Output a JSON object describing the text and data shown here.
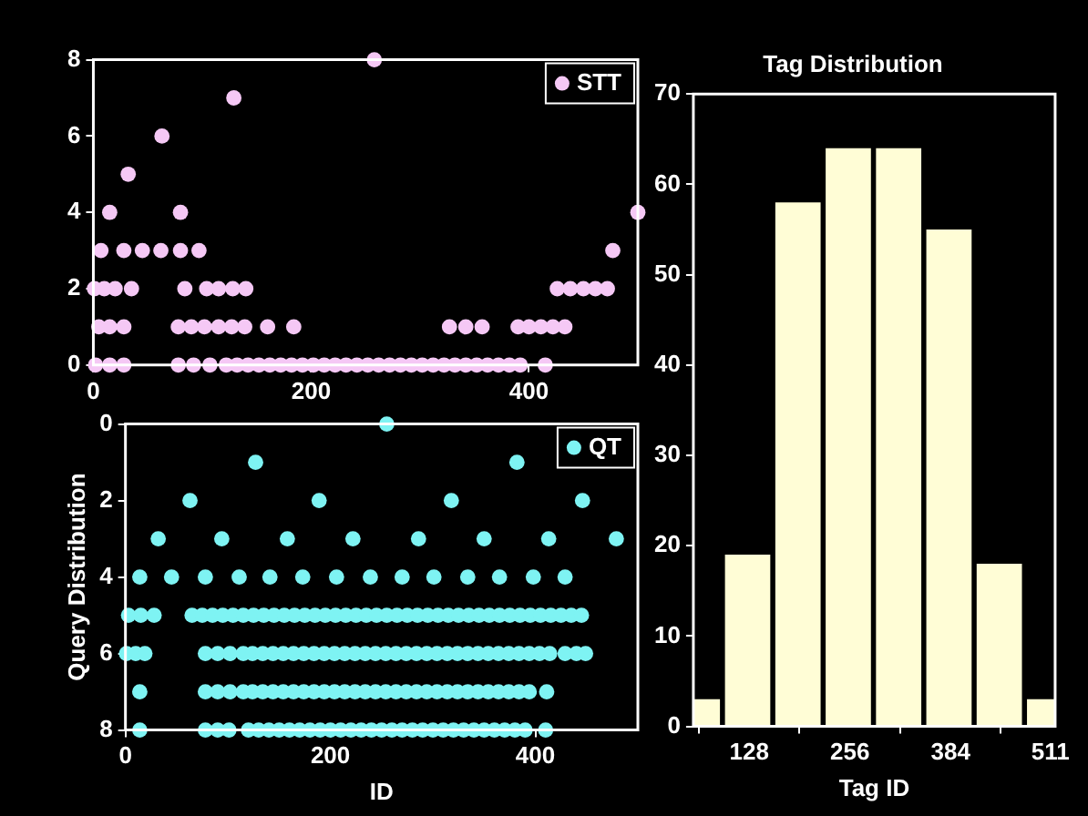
{
  "chart_data": [
    {
      "type": "scatter",
      "xlim": [
        0,
        500
      ],
      "xticks": [
        0,
        200,
        400
      ],
      "ylim": [
        0,
        8
      ],
      "yticks": [
        0,
        2,
        4,
        6,
        8
      ],
      "legend": "top right",
      "marker": "circle",
      "series": [
        {
          "name": "STT",
          "color": "#f5c8f5",
          "x": [
            258,
            129,
            63,
            32,
            15,
            80,
            500,
            7,
            28,
            45,
            62,
            80,
            97,
            477,
            1,
            10,
            20,
            35,
            84,
            104,
            115,
            128,
            140,
            426,
            438,
            450,
            461,
            472,
            5,
            15,
            28,
            78,
            90,
            102,
            115,
            127,
            139,
            160,
            184,
            327,
            342,
            357,
            390,
            400,
            411,
            422,
            433,
            2,
            15,
            28,
            78,
            92,
            107,
            122,
            132,
            142,
            152,
            162,
            172,
            182,
            192,
            202,
            212,
            222,
            232,
            242,
            252,
            262,
            272,
            282,
            292,
            302,
            312,
            322,
            332,
            342,
            352,
            362,
            372,
            382,
            392,
            415
          ],
          "values": [
            8,
            7,
            6,
            5,
            4,
            4,
            4,
            3,
            3,
            3,
            3,
            3,
            3,
            3,
            2,
            2,
            2,
            2,
            2,
            2,
            2,
            2,
            2,
            2,
            2,
            2,
            2,
            2,
            1,
            1,
            1,
            1,
            1,
            1,
            1,
            1,
            1,
            1,
            1,
            1,
            1,
            1,
            1,
            1,
            1,
            1,
            1,
            0,
            0,
            0,
            0,
            0,
            0,
            0,
            0,
            0,
            0,
            0,
            0,
            0,
            0,
            0,
            0,
            0,
            0,
            0,
            0,
            0,
            0,
            0,
            0,
            0,
            0,
            0,
            0,
            0,
            0,
            0,
            0,
            0,
            0,
            0
          ]
        }
      ]
    },
    {
      "type": "scatter",
      "xlabel": "ID",
      "ylabel": "Query Distribution",
      "xlim": [
        0,
        500
      ],
      "xticks": [
        0,
        200,
        400
      ],
      "ylim": [
        8,
        0
      ],
      "yticks": [
        0,
        2,
        4,
        6,
        8
      ],
      "legend": "top right",
      "marker": "circle",
      "series": [
        {
          "name": "QT",
          "color": "#7ef3f3",
          "x": [
            255,
            127,
            382,
            63,
            189,
            318,
            446,
            32,
            94,
            158,
            222,
            286,
            350,
            413,
            479,
            14,
            45,
            78,
            111,
            141,
            173,
            206,
            239,
            270,
            301,
            334,
            365,
            398,
            429,
            3,
            15,
            28,
            65,
            75,
            85,
            95,
            105,
            115,
            125,
            135,
            145,
            155,
            165,
            175,
            185,
            195,
            205,
            215,
            225,
            235,
            245,
            255,
            265,
            275,
            285,
            295,
            305,
            315,
            325,
            335,
            345,
            355,
            365,
            375,
            385,
            395,
            405,
            415,
            425,
            435,
            445,
            1,
            10,
            19,
            78,
            90,
            102,
            115,
            124,
            134,
            144,
            154,
            164,
            174,
            184,
            194,
            204,
            214,
            224,
            234,
            244,
            254,
            264,
            274,
            284,
            294,
            304,
            314,
            324,
            334,
            344,
            354,
            364,
            374,
            384,
            394,
            404,
            414,
            429,
            440,
            449,
            14,
            78,
            90,
            102,
            115,
            124,
            134,
            144,
            154,
            164,
            174,
            184,
            194,
            204,
            214,
            224,
            234,
            244,
            254,
            264,
            274,
            284,
            294,
            304,
            314,
            324,
            334,
            344,
            354,
            364,
            374,
            384,
            394,
            411,
            14,
            78,
            90,
            101,
            120,
            130,
            140,
            150,
            160,
            170,
            180,
            190,
            200,
            210,
            220,
            230,
            240,
            250,
            260,
            270,
            280,
            290,
            300,
            310,
            320,
            330,
            340,
            350,
            360,
            370,
            380,
            390,
            410
          ],
          "values": [
            0,
            1,
            1,
            2,
            2,
            2,
            2,
            3,
            3,
            3,
            3,
            3,
            3,
            3,
            3,
            4,
            4,
            4,
            4,
            4,
            4,
            4,
            4,
            4,
            4,
            4,
            4,
            4,
            4,
            5,
            5,
            5,
            5,
            5,
            5,
            5,
            5,
            5,
            5,
            5,
            5,
            5,
            5,
            5,
            5,
            5,
            5,
            5,
            5,
            5,
            5,
            5,
            5,
            5,
            5,
            5,
            5,
            5,
            5,
            5,
            5,
            5,
            5,
            5,
            5,
            5,
            5,
            5,
            5,
            5,
            5,
            6,
            6,
            6,
            6,
            6,
            6,
            6,
            6,
            6,
            6,
            6,
            6,
            6,
            6,
            6,
            6,
            6,
            6,
            6,
            6,
            6,
            6,
            6,
            6,
            6,
            6,
            6,
            6,
            6,
            6,
            6,
            6,
            6,
            6,
            6,
            6,
            6,
            6,
            6,
            6,
            7,
            7,
            7,
            7,
            7,
            7,
            7,
            7,
            7,
            7,
            7,
            7,
            7,
            7,
            7,
            7,
            7,
            7,
            7,
            7,
            7,
            7,
            7,
            7,
            7,
            7,
            7,
            7,
            7,
            7,
            7,
            7,
            7,
            7,
            8,
            8,
            8,
            8,
            8,
            8,
            8,
            8,
            8,
            8,
            8,
            8,
            8,
            8,
            8,
            8,
            8,
            8,
            8,
            8,
            8,
            8,
            8,
            8,
            8,
            8,
            8,
            8,
            8,
            8,
            8,
            8,
            8
          ]
        }
      ]
    },
    {
      "type": "histogram",
      "title": "Tag Distribution",
      "xlabel": "Tag ID",
      "color": "#fffdd6",
      "bins": [
        30,
        94,
        158,
        222,
        286,
        350,
        414,
        478,
        542
      ],
      "values": [
        3,
        19,
        58,
        64,
        64,
        55,
        18,
        3
      ],
      "xlim": [
        57,
        517
      ],
      "xticks": [
        128,
        256,
        384,
        511
      ],
      "ylim": [
        0,
        70
      ],
      "yticks": [
        0,
        10,
        20,
        30,
        40,
        50,
        60,
        70
      ]
    }
  ]
}
